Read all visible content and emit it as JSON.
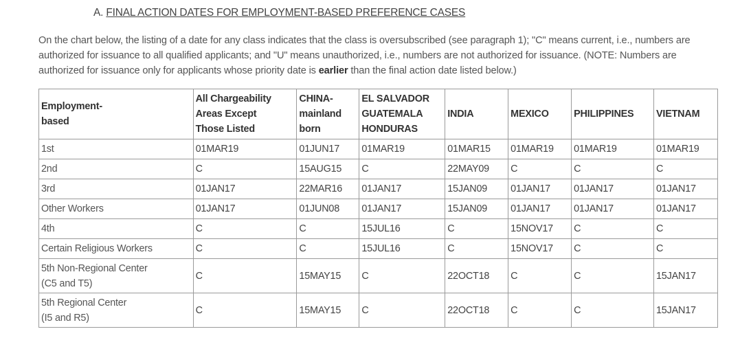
{
  "section": {
    "letter": "A.",
    "title": "FINAL ACTION DATES FOR EMPLOYMENT-BASED PREFERENCE CASES"
  },
  "intro": {
    "text_before": "On the chart below, the listing of a date for any class indicates that the class is oversubscribed (see paragraph 1); \"C\" means current, i.e., numbers are authorized for issuance to all qualified applicants; and \"U\" means unauthorized, i.e., numbers are not authorized for issuance. (NOTE: Numbers are authorized for issuance only for applicants whose priority date is ",
    "emphasis": "earlier",
    "text_after": " than the final action date listed below.)"
  },
  "table": {
    "headers": [
      [
        "Employment-",
        "based"
      ],
      [
        "All Chargeability",
        "Areas Except",
        "Those Listed"
      ],
      [
        "CHINA-",
        "mainland",
        "born"
      ],
      [
        "EL SALVADOR",
        "GUATEMALA",
        "HONDURAS"
      ],
      [
        "INDIA"
      ],
      [
        "MEXICO"
      ],
      [
        "PHILIPPINES"
      ],
      [
        "VIETNAM"
      ]
    ],
    "rows": [
      {
        "category": [
          "1st"
        ],
        "values": [
          "01MAR19",
          "01JUN17",
          "01MAR19",
          "01MAR15",
          "01MAR19",
          "01MAR19",
          "01MAR19"
        ]
      },
      {
        "category": [
          "2nd"
        ],
        "values": [
          "C",
          "15AUG15",
          "C",
          "22MAY09",
          "C",
          "C",
          "C"
        ]
      },
      {
        "category": [
          "3rd"
        ],
        "values": [
          "01JAN17",
          "22MAR16",
          "01JAN17",
          "15JAN09",
          "01JAN17",
          "01JAN17",
          "01JAN17"
        ]
      },
      {
        "category": [
          "Other Workers"
        ],
        "values": [
          "01JAN17",
          "01JUN08",
          "01JAN17",
          "15JAN09",
          "01JAN17",
          "01JAN17",
          "01JAN17"
        ]
      },
      {
        "category": [
          "4th"
        ],
        "values": [
          "C",
          "C",
          "15JUL16",
          "C",
          "15NOV17",
          "C",
          "C"
        ]
      },
      {
        "category": [
          "Certain Religious Workers"
        ],
        "values": [
          "C",
          "C",
          "15JUL16",
          "C",
          "15NOV17",
          "C",
          "C"
        ]
      },
      {
        "category": [
          "5th Non-Regional Center",
          "(C5 and T5)"
        ],
        "values": [
          "C",
          "15MAY15",
          "C",
          "22OCT18",
          "C",
          "C",
          "15JAN17"
        ]
      },
      {
        "category": [
          "5th Regional Center",
          "(I5 and R5)"
        ],
        "values": [
          "C",
          "15MAY15",
          "C",
          "22OCT18",
          "C",
          "C",
          "15JAN17"
        ]
      }
    ]
  }
}
